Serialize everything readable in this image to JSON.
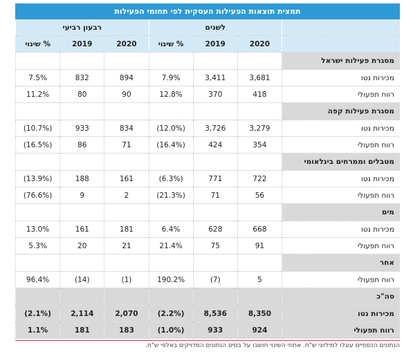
{
  "title": "תמצית תוצאות הפעילות העסקית לפי תחומי הפעילות",
  "header": {
    "groups": [
      "לשנים",
      "רבעון רביעי"
    ],
    "columns": [
      "2020",
      "2019",
      "% שינוי",
      "2020",
      "2019",
      "% שינוי"
    ]
  },
  "sections": [
    {
      "title": "מסגרת פעילות ישראל",
      "rows": [
        {
          "label": "מכירות נטו",
          "cells": [
            "3,681",
            "3,411",
            "7.9%",
            "894",
            "832",
            "7.5%"
          ]
        },
        {
          "label": "רווח תפעולי",
          "cells": [
            "418",
            "370",
            "12.8%",
            "90",
            "80",
            "11.2%"
          ]
        }
      ]
    },
    {
      "title": "מסגרת פעילות קפה",
      "rows": [
        {
          "label": "מכירות נטו",
          "cells": [
            "3,279",
            "3,726",
            "(12.0%)",
            "834",
            "933",
            "(10.7%)"
          ]
        },
        {
          "label": "רווח תפעולי",
          "cells": [
            "354",
            "424",
            "(16.4%)",
            "71",
            "86",
            "(16.5%)"
          ]
        }
      ]
    },
    {
      "title": "מטבלים וממרחים בינלאומי",
      "rows": [
        {
          "label": "מכירות נטו",
          "cells": [
            "722",
            "771",
            "(6.3%)",
            "161",
            "188",
            "(13.9%)"
          ]
        },
        {
          "label": "רווח תפעולי",
          "cells": [
            "56",
            "71",
            "(21.3%)",
            "2",
            "9",
            "(76.6%)"
          ]
        }
      ]
    },
    {
      "title": "מים",
      "rows": [
        {
          "label": "מכירות נטו",
          "cells": [
            "668",
            "628",
            "6.4%",
            "181",
            "161",
            "13.0%"
          ]
        },
        {
          "label": "רווח תפעולי",
          "cells": [
            "91",
            "75",
            "21.4%",
            "21",
            "20",
            "5.3%"
          ]
        }
      ]
    },
    {
      "title": "אחר",
      "rows": [
        {
          "label": "רווח תפעולי",
          "cells": [
            "5",
            "(7)",
            "190.2%",
            "(1)",
            "(14)",
            "96.4%"
          ]
        }
      ]
    },
    {
      "title": "סה\"כ",
      "total": true,
      "rows": [
        {
          "label": "מכירות נטו",
          "cells": [
            "8,350",
            "8,536",
            "(2.2%)",
            "2,070",
            "2,114",
            "(2.1%)"
          ]
        },
        {
          "label": "רווח תפעולי",
          "cells": [
            "924",
            "933",
            "(1.0%)",
            "183",
            "181",
            "1.1%"
          ]
        }
      ]
    }
  ],
  "footnote": "הנתונים הכספיים עוגלו למיליוני ש\"ח. אחוזי השינוי חושבו על בסיס הנתונים המדויקים באלפי ש\"ח."
}
